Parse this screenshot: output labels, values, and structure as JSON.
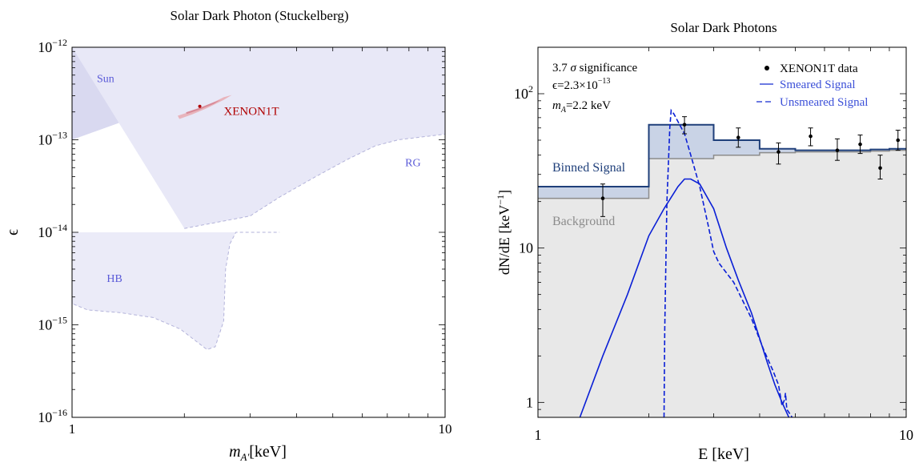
{
  "chart_data": [
    {
      "type": "area",
      "title": "Solar Dark Photon (Stuckelberg)",
      "xlabel": "m",
      "xlabel_sub": "A'",
      "xlabel_unit": "[keV]",
      "ylabel": "ϵ",
      "xlim": [
        1,
        10
      ],
      "ylim": [
        1e-16,
        1e-12
      ],
      "xscale": "log",
      "yscale": "log",
      "x_ticks": [
        {
          "value": 1,
          "label": "1"
        },
        {
          "value": 10,
          "label": "10"
        }
      ],
      "y_ticks": [
        {
          "value": 1e-16,
          "base": "10",
          "exp": "−16"
        },
        {
          "value": 1e-15,
          "base": "10",
          "exp": "−15"
        },
        {
          "value": 1e-14,
          "base": "10",
          "exp": "−14"
        },
        {
          "value": 1e-13,
          "base": "10",
          "exp": "−13"
        },
        {
          "value": 1e-12,
          "base": "10",
          "exp": "−12"
        }
      ],
      "regions": [
        {
          "name": "Sun",
          "color": "#d9d9f0",
          "label": "Sun",
          "label_at": [
            1.23,
            4.2e-13
          ],
          "boundary": [
            [
              1.0,
              1e-13
            ],
            [
              1.5,
              1.8e-13
            ],
            [
              2.0,
              3e-13
            ],
            [
              2.5,
              4.8e-13
            ],
            [
              3.0,
              8e-13
            ],
            [
              3.3,
              1e-12
            ]
          ]
        },
        {
          "name": "RG",
          "color": "#e8e8f7",
          "label": "RG",
          "label_at": [
            8.2,
            5.2e-14
          ],
          "boundary": [
            [
              2.0,
              1.1e-14
            ],
            [
              3.0,
              1.5e-14
            ],
            [
              3.6,
              2.4e-14
            ],
            [
              4.5,
              4e-14
            ],
            [
              5.5,
              6.2e-14
            ],
            [
              6.5,
              8.6e-14
            ],
            [
              7.5,
              1e-13
            ],
            [
              10.0,
              1.15e-13
            ]
          ]
        },
        {
          "name": "HB",
          "color": "#ebebf8",
          "label": "HB",
          "label_at": [
            1.3,
            2.9e-15
          ],
          "boundary": [
            [
              1.0,
              1e-14
            ],
            [
              1.0,
              1.7e-15
            ],
            [
              1.1,
              1.45e-15
            ],
            [
              1.35,
              1.35e-15
            ],
            [
              1.65,
              1.2e-15
            ],
            [
              1.95,
              9e-16
            ],
            [
              2.3,
              5.4e-16
            ],
            [
              2.42,
              5.8e-16
            ],
            [
              2.55,
              1.1e-15
            ],
            [
              2.58,
              4e-15
            ],
            [
              2.65,
              7.5e-15
            ],
            [
              2.75,
              1e-14
            ],
            [
              3.6,
              1e-14
            ]
          ]
        }
      ],
      "fit_region": {
        "label": "XENON1T",
        "color": "#b00000",
        "center": [
          2.2,
          2.3e-13
        ],
        "label_at": [
          2.55,
          1.85e-13
        ],
        "outer": [
          [
            1.92,
            1.82e-13
          ],
          [
            2.1,
            2.05e-13
          ],
          [
            2.35,
            2.45e-13
          ],
          [
            2.55,
            2.88e-13
          ],
          [
            2.68,
            3.05e-13
          ],
          [
            2.55,
            2.7e-13
          ],
          [
            2.3,
            2.2e-13
          ],
          [
            2.1,
            1.88e-13
          ],
          [
            1.94,
            1.68e-13
          ]
        ],
        "inner": [
          [
            2.02,
            1.98e-13
          ],
          [
            2.2,
            2.22e-13
          ],
          [
            2.4,
            2.55e-13
          ],
          [
            2.5,
            2.7e-13
          ],
          [
            2.4,
            2.45e-13
          ],
          [
            2.2,
            2.12e-13
          ],
          [
            2.03,
            1.9e-13
          ]
        ]
      }
    },
    {
      "type": "line",
      "title": "Solar Dark Photons",
      "xlabel": "E [keV]",
      "ylabel": "dN/dE [keV⁻¹]",
      "ylabel_exp": "−1",
      "xlim": [
        1,
        10
      ],
      "ylim": [
        0.8,
        200
      ],
      "xscale": "log",
      "yscale": "log",
      "x_ticks": [
        {
          "value": 1,
          "label": "1"
        },
        {
          "value": 10,
          "label": "10"
        }
      ],
      "y_ticks": [
        {
          "value": 1,
          "label": "1"
        },
        {
          "value": 10,
          "label": "10"
        },
        {
          "value": 100,
          "label": "10",
          "exp": "2"
        }
      ],
      "annotations": [
        {
          "text": "3.7",
          "sigma": "σ",
          "rest": " significance"
        },
        {
          "prefix": "ϵ=2.3×10",
          "exp": "−13"
        },
        {
          "prefix": "m",
          "sub": "A",
          "rest": "=2.2 keV"
        }
      ],
      "bin_edges": [
        1,
        2,
        3,
        4,
        5,
        6,
        7,
        8,
        9,
        10
      ],
      "background": {
        "name": "Background",
        "color": "#8c8c8c",
        "values": [
          21,
          38,
          40,
          41.5,
          42,
          42,
          42,
          42.5,
          43
        ]
      },
      "binned_signal": {
        "name": "Binned Signal",
        "color": "#1f3f7a",
        "values": [
          25,
          63,
          50,
          44,
          43,
          43,
          43,
          43.5,
          44
        ]
      },
      "data": {
        "name": "XENON1T data",
        "points": [
          {
            "x": 1.5,
            "y": 21,
            "lo": 16,
            "hi": 26
          },
          {
            "x": 2.5,
            "y": 63,
            "lo": 55,
            "hi": 71
          },
          {
            "x": 3.5,
            "y": 52,
            "lo": 45,
            "hi": 60
          },
          {
            "x": 4.5,
            "y": 42,
            "lo": 35,
            "hi": 48
          },
          {
            "x": 5.5,
            "y": 53,
            "lo": 46,
            "hi": 60
          },
          {
            "x": 6.5,
            "y": 43,
            "lo": 37,
            "hi": 51
          },
          {
            "x": 7.5,
            "y": 47,
            "lo": 41,
            "hi": 54
          },
          {
            "x": 8.5,
            "y": 33,
            "lo": 28,
            "hi": 40
          },
          {
            "x": 9.5,
            "y": 50,
            "lo": 43,
            "hi": 58
          }
        ]
      },
      "series": [
        {
          "name": "Smeared Signal",
          "style": "solid",
          "color": "#0a1fd6",
          "x": [
            1.3,
            1.5,
            1.75,
            2.0,
            2.2,
            2.4,
            2.5,
            2.6,
            2.75,
            3.0,
            3.25,
            3.5,
            3.8,
            4.0,
            4.2,
            4.4,
            4.6,
            4.8
          ],
          "y": [
            0.8,
            2.0,
            5.0,
            12.0,
            18.0,
            25.0,
            28.0,
            28.0,
            26.0,
            18.0,
            10.0,
            6.2,
            3.8,
            2.6,
            1.8,
            1.3,
            1.0,
            0.8
          ]
        },
        {
          "name": "Unsmeared Signal",
          "style": "dashed",
          "color": "#0a1fd6",
          "x": [
            2.2,
            2.21,
            2.24,
            2.28,
            2.3,
            2.34,
            2.4,
            2.5,
            2.6,
            2.75,
            2.9,
            3.0,
            3.1,
            3.4,
            3.8,
            4.1,
            4.35,
            4.5,
            4.6,
            4.68,
            4.7,
            4.74,
            4.82,
            4.9
          ],
          "y": [
            0.8,
            3.0,
            20.0,
            60.0,
            78.0,
            74.0,
            66.0,
            55.0,
            40.0,
            25.0,
            14.0,
            9.5,
            8.0,
            6.0,
            3.5,
            2.2,
            1.6,
            1.3,
            0.95,
            1.05,
            1.15,
            0.9,
            0.85,
            0.8
          ]
        }
      ],
      "legend": {
        "placement": "top-right",
        "items": [
          {
            "label": "XENON1T data",
            "marker": "dot"
          },
          {
            "label": "Smeared Signal",
            "marker": "line"
          },
          {
            "label": "Unsmeared Signal",
            "marker": "dash"
          }
        ]
      }
    }
  ]
}
